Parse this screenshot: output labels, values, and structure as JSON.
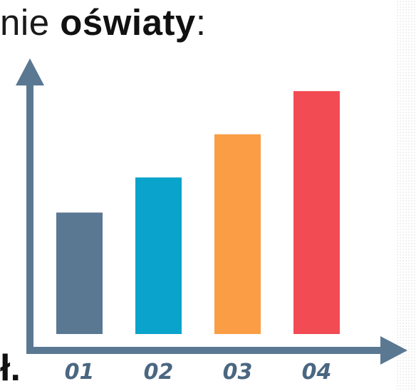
{
  "heading": {
    "prefix": "nie ",
    "bold": "oświaty",
    "suffix": ":"
  },
  "footer_fragment": "ł.",
  "colors": {
    "axis": "#5a7892",
    "bars": [
      "#5a7892",
      "#0aa3cc",
      "#fa9d45",
      "#f24b53"
    ],
    "tick_label": "#4a6781"
  },
  "chart_data": {
    "type": "bar",
    "categories": [
      "01",
      "02",
      "03",
      "04"
    ],
    "values": [
      45,
      58,
      74,
      90
    ],
    "title": "",
    "xlabel": "",
    "ylabel": "",
    "ylim": [
      0,
      100
    ],
    "grid": false,
    "legend": "none"
  }
}
